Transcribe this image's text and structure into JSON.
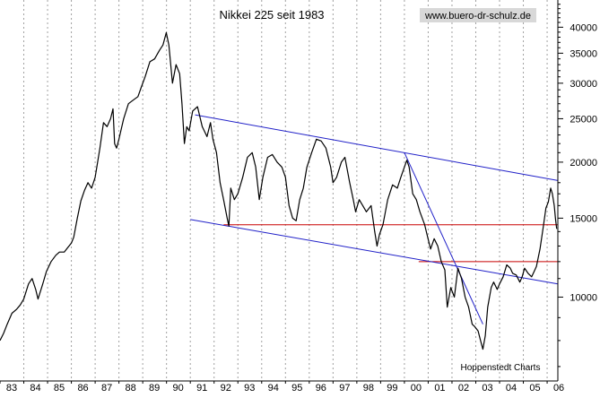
{
  "chart_data": {
    "type": "line",
    "title": "Nikkei 225 seit 1983",
    "source_label": "www.buero-dr-schulz.de",
    "credit": "Hoppenstedt Charts",
    "y_scale": "log",
    "ylim": [
      6500,
      46000
    ],
    "xlim": [
      1983.0,
      2006.45
    ],
    "x_tick_labels": [
      "83",
      "84",
      "85",
      "86",
      "87",
      "88",
      "89",
      "90",
      "91",
      "92",
      "93",
      "94",
      "95",
      "96",
      "97",
      "98",
      "99",
      "00",
      "01",
      "02",
      "03",
      "04",
      "05",
      "06"
    ],
    "y_ticks": [
      10000,
      15000,
      20000,
      25000,
      30000,
      35000,
      40000
    ],
    "y_tick_labels": [
      "10000",
      "15000",
      "20000",
      "25000",
      "30000",
      "35000",
      "40000"
    ],
    "grid": {
      "vertical": true,
      "horizontal": false,
      "style": "dotted"
    },
    "colors": {
      "series": "#000000",
      "trend_lines": "#2020c8",
      "support_lines": "#c80000",
      "grid": "#a0a0a0",
      "axis": "#000000"
    },
    "series": [
      {
        "values": [
          [
            1983.0,
            8000
          ],
          [
            1983.15,
            8300
          ],
          [
            1983.3,
            8700
          ],
          [
            1983.5,
            9200
          ],
          [
            1983.7,
            9400
          ],
          [
            1983.85,
            9600
          ],
          [
            1984.0,
            9900
          ],
          [
            1984.2,
            10700
          ],
          [
            1984.35,
            11000
          ],
          [
            1984.5,
            10400
          ],
          [
            1984.6,
            9900
          ],
          [
            1984.8,
            10700
          ],
          [
            1984.95,
            11400
          ],
          [
            1985.15,
            12000
          ],
          [
            1985.35,
            12400
          ],
          [
            1985.5,
            12600
          ],
          [
            1985.7,
            12600
          ],
          [
            1985.85,
            12900
          ],
          [
            1986.0,
            13200
          ],
          [
            1986.1,
            13600
          ],
          [
            1986.25,
            15000
          ],
          [
            1986.4,
            16400
          ],
          [
            1986.55,
            17300
          ],
          [
            1986.7,
            18000
          ],
          [
            1986.85,
            17500
          ],
          [
            1987.0,
            18500
          ],
          [
            1987.2,
            21500
          ],
          [
            1987.35,
            24500
          ],
          [
            1987.5,
            24000
          ],
          [
            1987.65,
            25000
          ],
          [
            1987.75,
            26300
          ],
          [
            1987.82,
            22000
          ],
          [
            1987.9,
            21500
          ],
          [
            1988.0,
            22500
          ],
          [
            1988.2,
            25000
          ],
          [
            1988.4,
            27000
          ],
          [
            1988.6,
            27500
          ],
          [
            1988.8,
            28000
          ],
          [
            1988.95,
            29500
          ],
          [
            1989.1,
            31000
          ],
          [
            1989.3,
            33500
          ],
          [
            1989.5,
            34000
          ],
          [
            1989.7,
            35500
          ],
          [
            1989.85,
            36500
          ],
          [
            1989.99,
            38900
          ],
          [
            1990.1,
            36500
          ],
          [
            1990.25,
            30000
          ],
          [
            1990.4,
            33000
          ],
          [
            1990.55,
            31500
          ],
          [
            1990.65,
            27000
          ],
          [
            1990.75,
            22000
          ],
          [
            1990.85,
            24000
          ],
          [
            1990.95,
            23500
          ],
          [
            1991.1,
            26000
          ],
          [
            1991.3,
            26600
          ],
          [
            1991.5,
            24000
          ],
          [
            1991.7,
            22800
          ],
          [
            1991.85,
            24500
          ],
          [
            1991.95,
            22500
          ],
          [
            1992.1,
            21000
          ],
          [
            1992.25,
            18000
          ],
          [
            1992.4,
            16500
          ],
          [
            1992.55,
            15000
          ],
          [
            1992.62,
            14400
          ],
          [
            1992.7,
            17500
          ],
          [
            1992.85,
            16500
          ],
          [
            1993.0,
            17000
          ],
          [
            1993.2,
            18500
          ],
          [
            1993.4,
            20500
          ],
          [
            1993.6,
            21000
          ],
          [
            1993.75,
            19500
          ],
          [
            1993.9,
            16500
          ],
          [
            1994.05,
            18500
          ],
          [
            1994.25,
            20500
          ],
          [
            1994.45,
            20800
          ],
          [
            1994.65,
            20000
          ],
          [
            1994.85,
            19500
          ],
          [
            1995.0,
            18500
          ],
          [
            1995.15,
            16000
          ],
          [
            1995.3,
            15000
          ],
          [
            1995.45,
            14800
          ],
          [
            1995.6,
            16500
          ],
          [
            1995.75,
            17500
          ],
          [
            1995.9,
            19500
          ],
          [
            1996.1,
            21000
          ],
          [
            1996.3,
            22500
          ],
          [
            1996.5,
            22300
          ],
          [
            1996.7,
            21500
          ],
          [
            1996.9,
            19500
          ],
          [
            1997.0,
            18000
          ],
          [
            1997.15,
            18500
          ],
          [
            1997.35,
            20000
          ],
          [
            1997.5,
            20500
          ],
          [
            1997.7,
            18000
          ],
          [
            1997.85,
            16500
          ],
          [
            1997.95,
            15500
          ],
          [
            1998.1,
            16500
          ],
          [
            1998.25,
            16000
          ],
          [
            1998.4,
            15500
          ],
          [
            1998.6,
            16000
          ],
          [
            1998.75,
            14000
          ],
          [
            1998.85,
            13000
          ],
          [
            1998.95,
            13800
          ],
          [
            1999.1,
            14500
          ],
          [
            1999.3,
            16500
          ],
          [
            1999.5,
            17800
          ],
          [
            1999.7,
            17500
          ],
          [
            1999.85,
            18500
          ],
          [
            2000.0,
            19500
          ],
          [
            2000.1,
            20200
          ],
          [
            2000.2,
            19500
          ],
          [
            2000.35,
            17000
          ],
          [
            2000.5,
            16500
          ],
          [
            2000.65,
            15500
          ],
          [
            2000.85,
            14500
          ],
          [
            2000.95,
            13800
          ],
          [
            2001.1,
            12800
          ],
          [
            2001.25,
            13500
          ],
          [
            2001.4,
            13000
          ],
          [
            2001.55,
            12000
          ],
          [
            2001.7,
            11500
          ],
          [
            2001.8,
            9500
          ],
          [
            2001.95,
            10500
          ],
          [
            2002.1,
            10000
          ],
          [
            2002.25,
            11600
          ],
          [
            2002.4,
            11000
          ],
          [
            2002.55,
            10000
          ],
          [
            2002.7,
            9500
          ],
          [
            2002.85,
            8700
          ],
          [
            2002.95,
            8600
          ],
          [
            2003.1,
            8400
          ],
          [
            2003.2,
            8000
          ],
          [
            2003.3,
            7650
          ],
          [
            2003.4,
            8200
          ],
          [
            2003.5,
            9500
          ],
          [
            2003.65,
            10500
          ],
          [
            2003.75,
            10800
          ],
          [
            2003.9,
            10400
          ],
          [
            2004.0,
            10700
          ],
          [
            2004.15,
            11100
          ],
          [
            2004.3,
            11800
          ],
          [
            2004.45,
            11600
          ],
          [
            2004.55,
            11300
          ],
          [
            2004.7,
            11200
          ],
          [
            2004.85,
            10800
          ],
          [
            2004.95,
            11100
          ],
          [
            2005.05,
            11600
          ],
          [
            2005.2,
            11300
          ],
          [
            2005.35,
            11100
          ],
          [
            2005.45,
            11400
          ],
          [
            2005.55,
            11700
          ],
          [
            2005.7,
            12800
          ],
          [
            2005.85,
            14500
          ],
          [
            2005.95,
            15800
          ],
          [
            2006.05,
            16300
          ],
          [
            2006.15,
            17500
          ],
          [
            2006.22,
            17000
          ],
          [
            2006.3,
            16000
          ],
          [
            2006.35,
            15000
          ],
          [
            2006.4,
            14200
          ]
        ]
      }
    ],
    "annotations": {
      "trend_lines": [
        {
          "from": [
            1991.2,
            25500
          ],
          "to": [
            2006.45,
            18200
          ]
        },
        {
          "from": [
            1991.0,
            14900
          ],
          "to": [
            2006.45,
            10700
          ]
        },
        {
          "from": [
            2000.0,
            21000
          ],
          "to": [
            2003.3,
            8700
          ]
        }
      ],
      "support_lines": [
        {
          "y": 14500,
          "x_from": 1992.4,
          "x_to": 2006.45
        },
        {
          "y": 12000,
          "x_from": 2000.6,
          "x_to": 2006.45
        }
      ]
    }
  }
}
